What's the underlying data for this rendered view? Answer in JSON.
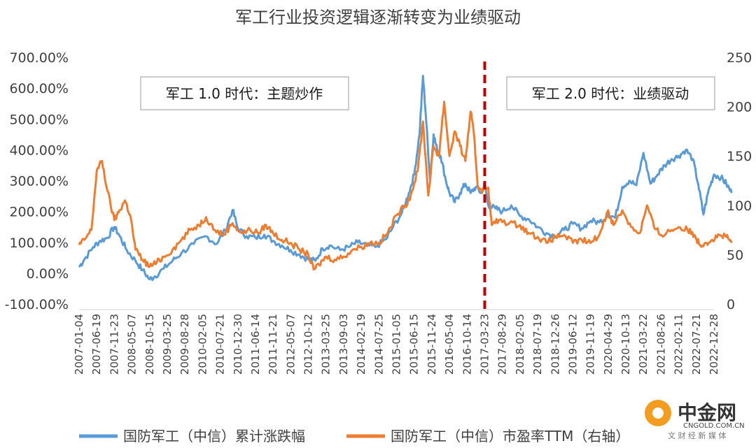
{
  "chart_data": {
    "type": "line",
    "title": "军工行业投资逻辑逐渐转变为业绩驱动",
    "y_left_ticks": [
      "700.00%",
      "600.00%",
      "500.00%",
      "400.00%",
      "300.00%",
      "200.00%",
      "100.00%",
      "0.00%",
      "-100.00%"
    ],
    "y_right_ticks": [
      "250",
      "200",
      "150",
      "100",
      "50",
      "0"
    ],
    "ylim_left": [
      -100,
      700
    ],
    "ylim_right": [
      0,
      250
    ],
    "x_ticks": [
      "2007-01-04",
      "2007-06-19",
      "2007-11-23",
      "2008-05-07",
      "2008-10-15",
      "2009-03-25",
      "2009-08-28",
      "2010-02-05",
      "2010-07-21",
      "2010-12-30",
      "2011-06-14",
      "2011-11-21",
      "2012-05-07",
      "2012-10-12",
      "2013-03-25",
      "2013-09-03",
      "2014-02-19",
      "2014-07-25",
      "2015-01-05",
      "2015-06-15",
      "2015-11-24",
      "2016-05-04",
      "2016-10-14",
      "2017-03-23",
      "2017-08-29",
      "2018-02-05",
      "2018-07-19",
      "2018-12-26",
      "2019-06-12",
      "2019-11-19",
      "2020-04-29",
      "2020-10-13",
      "2021-03-22",
      "2021-08-26",
      "2022-02-11",
      "2022-07-21",
      "2022-12-28"
    ],
    "series": [
      {
        "name": "国防军工（中信）累计涨跌幅",
        "axis": "left",
        "color": "#5B9BD5",
        "points": [
          [
            0,
            20
          ],
          [
            0.3,
            45
          ],
          [
            0.8,
            85
          ],
          [
            1.2,
            105
          ],
          [
            1.6,
            115
          ],
          [
            2.0,
            150
          ],
          [
            2.3,
            120
          ],
          [
            2.7,
            75
          ],
          [
            3.2,
            40
          ],
          [
            3.6,
            10
          ],
          [
            4.0,
            -20
          ],
          [
            4.3,
            -10
          ],
          [
            4.8,
            15
          ],
          [
            5.3,
            40
          ],
          [
            5.8,
            65
          ],
          [
            6.5,
            95
          ],
          [
            7.2,
            120
          ],
          [
            7.8,
            95
          ],
          [
            8.3,
            140
          ],
          [
            8.7,
            205
          ],
          [
            9.0,
            145
          ],
          [
            9.5,
            120
          ],
          [
            10.0,
            115
          ],
          [
            10.5,
            125
          ],
          [
            11.0,
            105
          ],
          [
            11.5,
            90
          ],
          [
            12.0,
            75
          ],
          [
            12.5,
            60
          ],
          [
            13.0,
            45
          ],
          [
            13.4,
            40
          ],
          [
            13.8,
            80
          ],
          [
            14.2,
            90
          ],
          [
            14.8,
            75
          ],
          [
            15.3,
            85
          ],
          [
            15.8,
            100
          ],
          [
            16.3,
            90
          ],
          [
            16.8,
            85
          ],
          [
            17.4,
            110
          ],
          [
            17.8,
            150
          ],
          [
            18.3,
            195
          ],
          [
            18.7,
            260
          ],
          [
            19.0,
            320
          ],
          [
            19.3,
            450
          ],
          [
            19.5,
            640
          ],
          [
            19.7,
            480
          ],
          [
            19.9,
            300
          ],
          [
            20.1,
            450
          ],
          [
            20.3,
            400
          ],
          [
            20.5,
            380
          ],
          [
            20.8,
            300
          ],
          [
            21.0,
            260
          ],
          [
            21.3,
            230
          ],
          [
            21.6,
            260
          ],
          [
            21.9,
            290
          ],
          [
            22.2,
            260
          ],
          [
            22.5,
            280
          ],
          [
            22.8,
            260
          ],
          [
            23.0,
            290
          ],
          [
            23.2,
            220
          ],
          [
            23.6,
            210
          ],
          [
            24.0,
            200
          ],
          [
            24.5,
            220
          ],
          [
            25.0,
            185
          ],
          [
            25.5,
            175
          ],
          [
            26.0,
            150
          ],
          [
            26.5,
            130
          ],
          [
            27.0,
            120
          ],
          [
            27.5,
            140
          ],
          [
            28.0,
            160
          ],
          [
            28.5,
            145
          ],
          [
            29.0,
            170
          ],
          [
            29.5,
            165
          ],
          [
            30.0,
            190
          ],
          [
            30.4,
            180
          ],
          [
            30.8,
            280
          ],
          [
            31.2,
            300
          ],
          [
            31.6,
            285
          ],
          [
            32.0,
            390
          ],
          [
            32.4,
            290
          ],
          [
            32.8,
            320
          ],
          [
            33.2,
            350
          ],
          [
            33.6,
            370
          ],
          [
            34.0,
            380
          ],
          [
            34.4,
            400
          ],
          [
            34.8,
            370
          ],
          [
            35.1,
            290
          ],
          [
            35.4,
            190
          ],
          [
            35.7,
            270
          ],
          [
            36.0,
            320
          ],
          [
            36.4,
            310
          ],
          [
            36.7,
            290
          ],
          [
            37.0,
            260
          ]
        ]
      },
      {
        "name": "国防军工（中信）市盈率TTM（右轴）",
        "axis": "right",
        "color": "#ED7D31",
        "points": [
          [
            0,
            60
          ],
          [
            0.3,
            65
          ],
          [
            0.7,
            75
          ],
          [
            1.0,
            135
          ],
          [
            1.3,
            145
          ],
          [
            1.6,
            115
          ],
          [
            2.0,
            85
          ],
          [
            2.3,
            95
          ],
          [
            2.6,
            105
          ],
          [
            2.9,
            90
          ],
          [
            3.2,
            55
          ],
          [
            3.6,
            45
          ],
          [
            4.0,
            38
          ],
          [
            4.4,
            42
          ],
          [
            4.8,
            48
          ],
          [
            5.3,
            55
          ],
          [
            5.8,
            65
          ],
          [
            6.3,
            75
          ],
          [
            6.8,
            80
          ],
          [
            7.2,
            88
          ],
          [
            7.7,
            75
          ],
          [
            8.2,
            70
          ],
          [
            8.7,
            82
          ],
          [
            9.2,
            72
          ],
          [
            9.7,
            75
          ],
          [
            10.2,
            72
          ],
          [
            10.6,
            80
          ],
          [
            11.0,
            72
          ],
          [
            11.5,
            65
          ],
          [
            12.0,
            62
          ],
          [
            12.5,
            55
          ],
          [
            13.0,
            50
          ],
          [
            13.3,
            35
          ],
          [
            13.6,
            40
          ],
          [
            14.0,
            48
          ],
          [
            14.5,
            45
          ],
          [
            15.0,
            48
          ],
          [
            15.5,
            55
          ],
          [
            16.0,
            58
          ],
          [
            16.5,
            62
          ],
          [
            17.0,
            62
          ],
          [
            17.5,
            72
          ],
          [
            18.0,
            90
          ],
          [
            18.5,
            100
          ],
          [
            18.8,
            110
          ],
          [
            19.2,
            135
          ],
          [
            19.5,
            185
          ],
          [
            19.8,
            110
          ],
          [
            20.1,
            160
          ],
          [
            20.4,
            150
          ],
          [
            20.7,
            205
          ],
          [
            21.0,
            150
          ],
          [
            21.3,
            175
          ],
          [
            21.6,
            160
          ],
          [
            21.9,
            145
          ],
          [
            22.2,
            195
          ],
          [
            22.4,
            170
          ],
          [
            22.6,
            120
          ],
          [
            22.9,
            115
          ],
          [
            23.2,
            118
          ],
          [
            23.4,
            80
          ],
          [
            23.8,
            85
          ],
          [
            24.4,
            82
          ],
          [
            25.0,
            80
          ],
          [
            25.5,
            72
          ],
          [
            26.0,
            68
          ],
          [
            26.5,
            62
          ],
          [
            27.0,
            68
          ],
          [
            27.5,
            70
          ],
          [
            28.0,
            62
          ],
          [
            28.5,
            65
          ],
          [
            29.0,
            62
          ],
          [
            29.5,
            70
          ],
          [
            30.0,
            95
          ],
          [
            30.3,
            80
          ],
          [
            30.8,
            95
          ],
          [
            31.3,
            78
          ],
          [
            31.8,
            72
          ],
          [
            32.2,
            100
          ],
          [
            32.6,
            78
          ],
          [
            33.0,
            70
          ],
          [
            33.6,
            75
          ],
          [
            34.0,
            78
          ],
          [
            34.5,
            75
          ],
          [
            34.9,
            70
          ],
          [
            35.2,
            60
          ],
          [
            35.5,
            62
          ],
          [
            35.9,
            65
          ],
          [
            36.3,
            70
          ],
          [
            36.7,
            68
          ],
          [
            37.0,
            62
          ]
        ]
      }
    ],
    "annotations": {
      "era1": "军工 1.0 时代：主题炒作",
      "era2": "军工 2.0 时代：业绩驱动",
      "divider_x_index": 23
    },
    "legend": {
      "position": "bottom",
      "items": [
        "国防军工（中信）累计涨跌幅",
        "国防军工（中信）市盈率TTM（右轴）"
      ]
    },
    "grid": false
  },
  "watermark": {
    "cn": "中金网",
    "en": "CNGOLD.COM.CN",
    "sub": "文 财 经 新 媒 体"
  },
  "colors": {
    "series1": "#5B9BD5",
    "series2": "#ED7D31",
    "divider": "#C00000"
  }
}
